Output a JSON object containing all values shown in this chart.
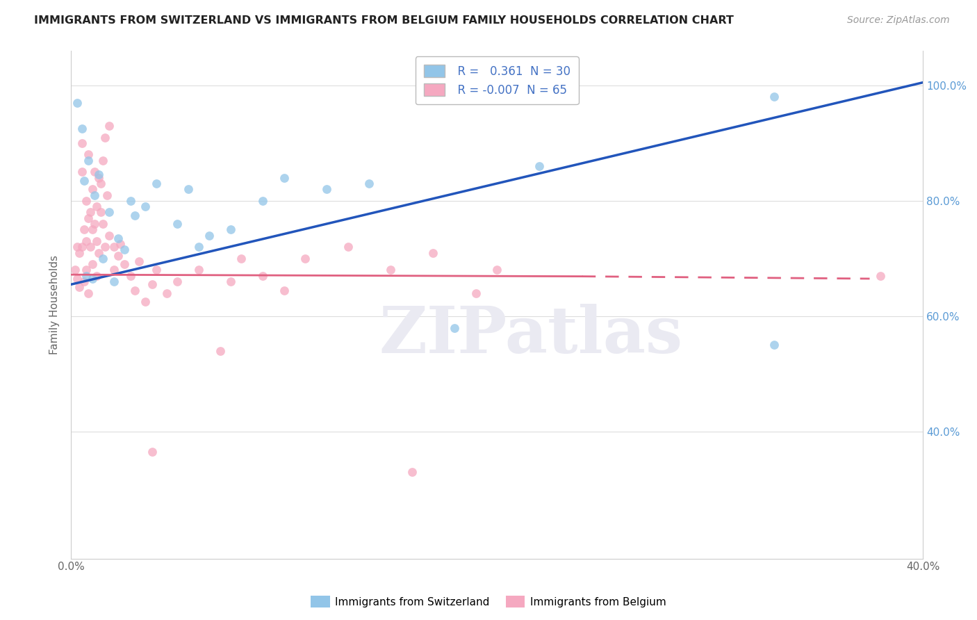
{
  "title": "IMMIGRANTS FROM SWITZERLAND VS IMMIGRANTS FROM BELGIUM FAMILY HOUSEHOLDS CORRELATION CHART",
  "source": "Source: ZipAtlas.com",
  "ylabel": "Family Households",
  "xlim": [
    0.0,
    0.4
  ],
  "ylim": [
    0.18,
    1.06
  ],
  "x_tick_positions": [
    0.0,
    0.1,
    0.2,
    0.3,
    0.4
  ],
  "x_tick_labels": [
    "0.0%",
    "",
    "",
    "",
    "40.0%"
  ],
  "y_tick_positions": [
    0.4,
    0.6,
    0.8,
    1.0
  ],
  "y_tick_labels": [
    "40.0%",
    "60.0%",
    "80.0%",
    "100.0%"
  ],
  "legend_r_switzerland": "R =   0.361",
  "legend_n_switzerland": "N = 30",
  "legend_r_belgium": "R = -0.007",
  "legend_n_belgium": "N = 65",
  "color_switzerland": "#92C5E8",
  "color_belgium": "#F5A8C0",
  "trendline_color_switzerland": "#2255BB",
  "trendline_color_belgium": "#E06080",
  "watermark_text": "ZIPatlas",
  "background_color": "#FFFFFF",
  "scatter_alpha": 0.75,
  "scatter_size": 85,
  "sw_trendline_x0": 0.0,
  "sw_trendline_y0": 0.655,
  "sw_trendline_x1": 0.4,
  "sw_trendline_y1": 1.005,
  "bel_trendline_x0": 0.0,
  "bel_trendline_y0": 0.672,
  "bel_trendline_x1": 0.375,
  "bel_trendline_y1": 0.665,
  "sw_x": [
    0.003,
    0.005,
    0.006,
    0.007,
    0.008,
    0.01,
    0.011,
    0.013,
    0.015,
    0.018,
    0.02,
    0.022,
    0.025,
    0.028,
    0.03,
    0.035,
    0.04,
    0.05,
    0.055,
    0.06,
    0.065,
    0.075,
    0.09,
    0.1,
    0.12,
    0.14,
    0.18,
    0.22,
    0.33,
    0.33
  ],
  "sw_y": [
    0.97,
    0.925,
    0.835,
    0.67,
    0.87,
    0.665,
    0.81,
    0.845,
    0.7,
    0.78,
    0.66,
    0.735,
    0.715,
    0.8,
    0.775,
    0.79,
    0.83,
    0.76,
    0.82,
    0.72,
    0.74,
    0.75,
    0.8,
    0.84,
    0.82,
    0.83,
    0.58,
    0.86,
    0.55,
    0.98
  ],
  "bel_x": [
    0.002,
    0.003,
    0.003,
    0.004,
    0.004,
    0.005,
    0.005,
    0.005,
    0.006,
    0.006,
    0.007,
    0.007,
    0.007,
    0.008,
    0.008,
    0.008,
    0.009,
    0.009,
    0.01,
    0.01,
    0.01,
    0.011,
    0.011,
    0.012,
    0.012,
    0.012,
    0.013,
    0.013,
    0.014,
    0.014,
    0.015,
    0.015,
    0.016,
    0.016,
    0.017,
    0.018,
    0.018,
    0.02,
    0.02,
    0.022,
    0.023,
    0.025,
    0.028,
    0.03,
    0.032,
    0.035,
    0.038,
    0.04,
    0.045,
    0.05,
    0.06,
    0.07,
    0.075,
    0.08,
    0.09,
    0.1,
    0.11,
    0.13,
    0.15,
    0.17,
    0.19,
    0.38,
    0.2,
    0.038,
    0.16
  ],
  "bel_y": [
    0.68,
    0.665,
    0.72,
    0.65,
    0.71,
    0.9,
    0.85,
    0.72,
    0.75,
    0.66,
    0.8,
    0.73,
    0.68,
    0.88,
    0.77,
    0.64,
    0.78,
    0.72,
    0.82,
    0.69,
    0.75,
    0.85,
    0.76,
    0.67,
    0.79,
    0.73,
    0.84,
    0.71,
    0.78,
    0.83,
    0.87,
    0.76,
    0.91,
    0.72,
    0.81,
    0.93,
    0.74,
    0.72,
    0.68,
    0.705,
    0.725,
    0.69,
    0.67,
    0.645,
    0.695,
    0.625,
    0.655,
    0.68,
    0.64,
    0.66,
    0.68,
    0.54,
    0.66,
    0.7,
    0.67,
    0.645,
    0.7,
    0.72,
    0.68,
    0.71,
    0.64,
    0.67,
    0.68,
    0.365,
    0.33
  ]
}
